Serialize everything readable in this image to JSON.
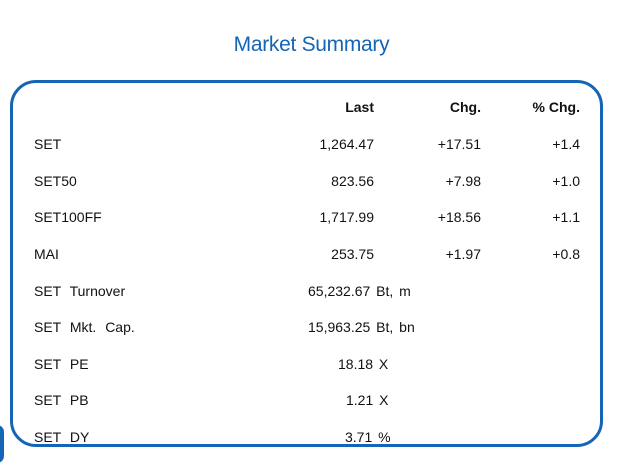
{
  "title": "Market Summary",
  "columns": {
    "last": "Last",
    "chg": "Chg.",
    "pct": "% Chg."
  },
  "indices": [
    {
      "name": "SET",
      "last": "1,264.47",
      "chg": "+17.51",
      "pct": "+1.4"
    },
    {
      "name": "SET50",
      "last": "823.56",
      "chg": "+7.98",
      "pct": "+1.0"
    },
    {
      "name": "SET100FF",
      "last": "1,717.99",
      "chg": "+18.56",
      "pct": "+1.1"
    },
    {
      "name": "MAI",
      "last": "253.75",
      "chg": "+1.97",
      "pct": "+0.8"
    }
  ],
  "stats": [
    {
      "name": "SET Turnover",
      "value": "65,232.67 Bt, m"
    },
    {
      "name": "SET Mkt. Cap.",
      "value": "15,963.25 Bt, bn"
    },
    {
      "name": "SET PE",
      "value": "18.18 X"
    },
    {
      "name": "SET PB",
      "value": "1.21 X"
    },
    {
      "name": "SET DY",
      "value": "3.71 %"
    }
  ],
  "colors": {
    "accent": "#1565b5",
    "text": "#111111",
    "background": "#ffffff"
  }
}
